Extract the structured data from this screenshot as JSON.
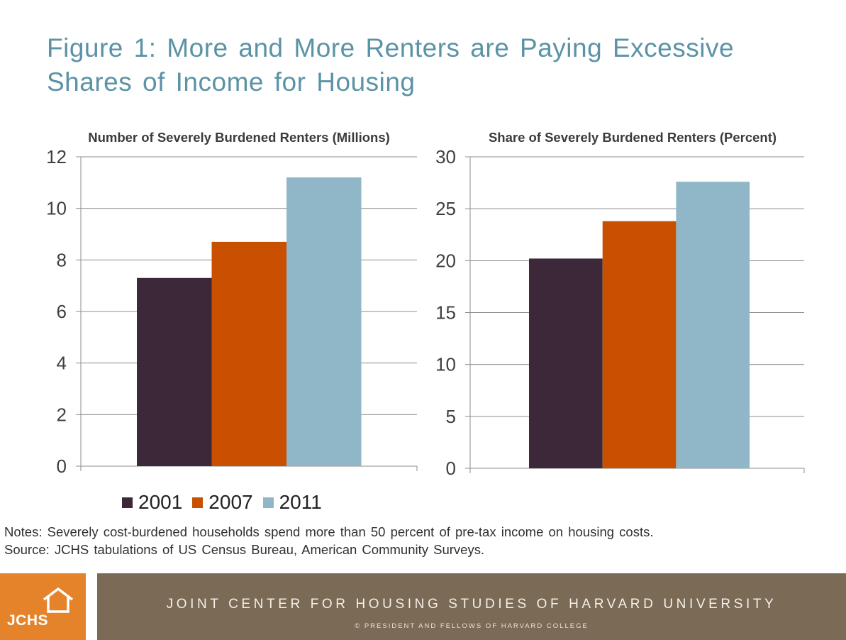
{
  "title_line1": "Figure 1: More and More Renters are Paying Excessive",
  "title_line2": "Shares of Income for Housing",
  "colors": {
    "2001": "#3d2839",
    "2007": "#c95000",
    "2011": "#8fb7c7",
    "title": "#5b93a6",
    "footer": "#7b6a55",
    "logo": "#e5832b"
  },
  "chart_data": [
    {
      "type": "bar",
      "title": "Number of Severely Burdened Renters (Millions)",
      "categories": [
        ""
      ],
      "series": [
        {
          "name": "2001",
          "values": [
            7.3
          ]
        },
        {
          "name": "2007",
          "values": [
            8.7
          ]
        },
        {
          "name": "2011",
          "values": [
            11.2
          ]
        }
      ],
      "ylim": [
        0,
        12
      ],
      "yticks": [
        "0",
        "2",
        "4",
        "6",
        "8",
        "10",
        "12"
      ],
      "grid": true,
      "xlabel": "",
      "ylabel": ""
    },
    {
      "type": "bar",
      "title": "Share of Severely Burdened Renters (Percent)",
      "categories": [
        ""
      ],
      "series": [
        {
          "name": "2001",
          "values": [
            20.2
          ]
        },
        {
          "name": "2007",
          "values": [
            23.8
          ]
        },
        {
          "name": "2011",
          "values": [
            27.6
          ]
        }
      ],
      "ylim": [
        0,
        30
      ],
      "yticks": [
        "0",
        "5",
        "10",
        "15",
        "20",
        "25",
        "30"
      ],
      "grid": true,
      "xlabel": "",
      "ylabel": ""
    }
  ],
  "legend": [
    "2001",
    "2007",
    "2011"
  ],
  "notes_line1": "Notes: Severely cost-burdened households spend more than 50 percent of pre-tax income on housing costs.",
  "notes_line2": "Source: JCHS tabulations of US Census Bureau, American Community Surveys.",
  "footer_org": "JOINT CENTER FOR HOUSING STUDIES OF HARVARD UNIVERSITY",
  "footer_copyright": "© PRESIDENT AND FELLOWS OF HARVARD COLLEGE",
  "logo_text": "JCHS"
}
